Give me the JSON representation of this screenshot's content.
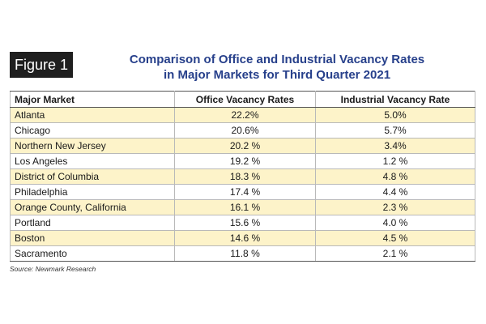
{
  "figure": {
    "label": "Figure 1",
    "title_line1": "Comparison of Office and Industrial Vacancy Rates",
    "title_line2": "in Major Markets for Third Quarter 2021"
  },
  "table": {
    "headers": [
      "Major Market",
      "Office Vacancy Rates",
      "Industrial Vacancy Rate"
    ],
    "rows": [
      [
        "Atlanta",
        "22.2%",
        "5.0%"
      ],
      [
        "Chicago",
        "20.6%",
        "5.7%"
      ],
      [
        "Northern New Jersey",
        "20.2 %",
        "3.4%"
      ],
      [
        "Los Angeles",
        "19.2 %",
        "1.2 %"
      ],
      [
        "District of Columbia",
        "18.3 %",
        "4.8 %"
      ],
      [
        "Philadelphia",
        "17.4 %",
        "4.4 %"
      ],
      [
        "Orange County, California",
        "16.1 %",
        "2.3 %"
      ],
      [
        "Portland",
        "15.6 %",
        "4.0 %"
      ],
      [
        "Boston",
        "14.6 %",
        "4.5 %"
      ],
      [
        "Sacramento",
        "11.8 %",
        "2.1 %"
      ]
    ]
  },
  "source": "Source: Newmark Research",
  "colors": {
    "title": "#27408b",
    "label_bg": "#1f1f1f",
    "row_highlight": "#fdf3c9"
  }
}
